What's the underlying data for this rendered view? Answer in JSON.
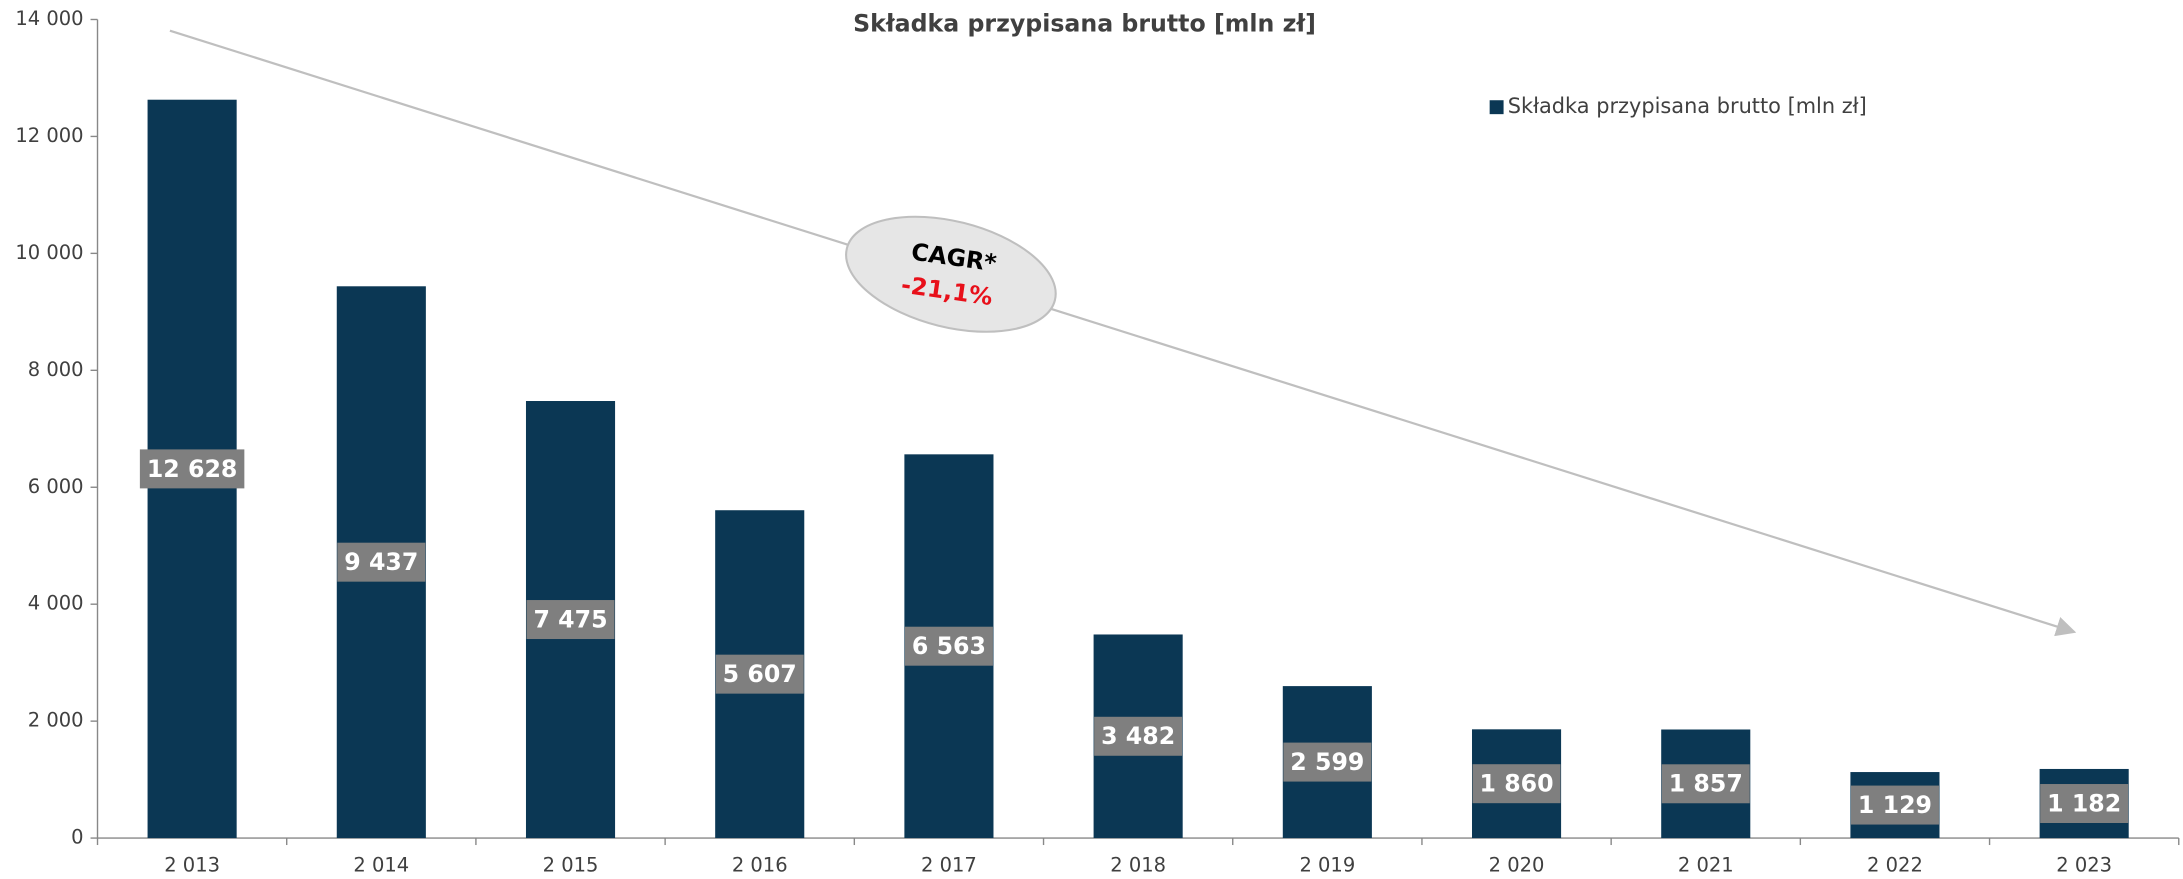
{
  "chart_data": {
    "type": "bar",
    "title": "Składka przypisana brutto [mln zł]",
    "categories": [
      "2 013",
      "2 014",
      "2 015",
      "2 016",
      "2 017",
      "2 018",
      "2 019",
      "2 020",
      "2 021",
      "2 022",
      "2 023"
    ],
    "series": [
      {
        "name": "Składka przypisana brutto [mln zł]",
        "color": "#0b3754",
        "values": [
          12628,
          9437,
          7475,
          5607,
          6563,
          3482,
          2599,
          1860,
          1857,
          1129,
          1182
        ],
        "value_labels": [
          "12 628",
          "9 437",
          "7 475",
          "5 607",
          "6 563",
          "3 482",
          "2 599",
          "1 860",
          "1 857",
          "1 129",
          "1 182"
        ]
      }
    ],
    "ylim": [
      0,
      14000
    ],
    "yticks": [
      0,
      {
        "value": 2000,
        "label": "2 000"
      },
      {
        "value": 4000,
        "label": "4 000"
      },
      {
        "value": 6000,
        "label": "6 000"
      },
      {
        "value": 8000,
        "label": "8 000"
      },
      {
        "value": 10000,
        "label": "10 000"
      },
      {
        "value": 12000,
        "label": "12 000"
      },
      {
        "value": 14000,
        "label": "14 000"
      }
    ],
    "legend": "top-right",
    "annotations": [
      "CAGR*",
      "-21,1%"
    ]
  }
}
